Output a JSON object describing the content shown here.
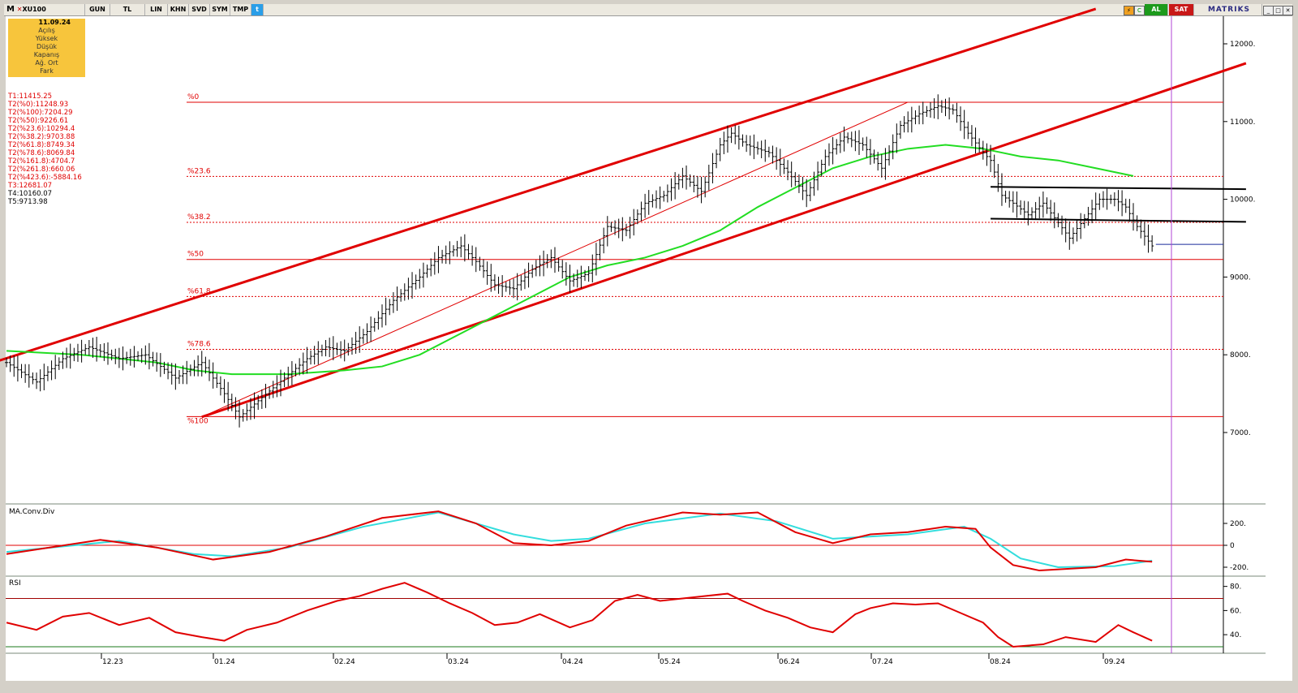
{
  "toolbar": {
    "symbol_prefix": "M",
    "symbol": "XU100",
    "buttons": [
      "GUN",
      "TL",
      "LIN",
      "KHN",
      "SVD",
      "SYM",
      "TMP"
    ],
    "al_label": "AL",
    "sat_label": "SAT",
    "brand": "MATRIKS"
  },
  "infobox": {
    "date": "11.09.24",
    "fields": [
      "Açılış",
      "Yüksek",
      "Düşük",
      "Kapanış",
      "Ağ. Ort",
      "Fark"
    ]
  },
  "fib_list": [
    "T1:11415.25",
    "T2(%0):11248.93",
    "T2(%100):7204.29",
    "T2(%50):9226.61",
    "T2(%23.6):10294.4",
    "T2(%38.2):9703.88",
    "T2(%61.8):8749.34",
    "T2(%78.6):8069.84",
    "T2(%161.8):4704.7",
    "T2(%261.8):660.06",
    "T2(%423.6):-5884.16",
    "T3:12681.07",
    "T4:10160.07",
    "T5:9713.98"
  ],
  "colors": {
    "channel": "#e00000",
    "ma": "#22dd22",
    "macd": "#e00000",
    "signal": "#33dddd",
    "rsi": "#e00000",
    "cursor": "#b044d4"
  },
  "chart_data": [
    {
      "type": "ohlc",
      "panel": "price",
      "y_axis_side": "right",
      "yticks": [
        7000,
        8000,
        9000,
        10000,
        11000,
        12000
      ],
      "ytick_labels": [
        "7000.",
        "8000.",
        "9000.",
        "10000.",
        "11000.",
        "12000."
      ],
      "xtick_labels": [
        "12.23",
        "01.24",
        "02.24",
        "03.24",
        "04.24",
        "05.24",
        "06.24",
        "07.24",
        "08.24",
        "09.24"
      ],
      "fib_levels": [
        {
          "label": "%0",
          "value": 11248.93
        },
        {
          "label": "%23.6",
          "value": 10294.4
        },
        {
          "label": "%38.2",
          "value": 9703.88
        },
        {
          "label": "%50",
          "value": 9226.61
        },
        {
          "label": "%61.8",
          "value": 8749.34
        },
        {
          "label": "%78.6",
          "value": 8069.84
        },
        {
          "label": "%100",
          "value": 7204.29
        }
      ],
      "close_path": [
        [
          0,
          7900
        ],
        [
          8,
          7650
        ],
        [
          15,
          7950
        ],
        [
          22,
          8100
        ],
        [
          30,
          7950
        ],
        [
          37,
          8000
        ],
        [
          45,
          7700
        ],
        [
          52,
          7900
        ],
        [
          58,
          7500
        ],
        [
          62,
          7200
        ],
        [
          68,
          7450
        ],
        [
          74,
          7700
        ],
        [
          80,
          7950
        ],
        [
          85,
          8100
        ],
        [
          90,
          8050
        ],
        [
          96,
          8300
        ],
        [
          103,
          8700
        ],
        [
          110,
          9000
        ],
        [
          115,
          9250
        ],
        [
          121,
          9400
        ],
        [
          125,
          9200
        ],
        [
          130,
          8900
        ],
        [
          135,
          8850
        ],
        [
          140,
          9100
        ],
        [
          145,
          9250
        ],
        [
          150,
          8950
        ],
        [
          155,
          9050
        ],
        [
          160,
          9650
        ],
        [
          165,
          9600
        ],
        [
          170,
          9950
        ],
        [
          175,
          10050
        ],
        [
          180,
          10300
        ],
        [
          185,
          10100
        ],
        [
          190,
          10700
        ],
        [
          193,
          10850
        ],
        [
          197,
          10700
        ],
        [
          203,
          10600
        ],
        [
          208,
          10350
        ],
        [
          213,
          10050
        ],
        [
          218,
          10550
        ],
        [
          223,
          10800
        ],
        [
          228,
          10700
        ],
        [
          233,
          10400
        ],
        [
          238,
          10950
        ],
        [
          243,
          11100
        ],
        [
          248,
          11200
        ],
        [
          252,
          11150
        ],
        [
          256,
          10850
        ],
        [
          260,
          10600
        ],
        [
          262,
          10500
        ],
        [
          265,
          10050
        ],
        [
          268,
          9950
        ],
        [
          272,
          9800
        ],
        [
          276,
          9950
        ],
        [
          280,
          9700
        ],
        [
          283,
          9500
        ],
        [
          287,
          9750
        ],
        [
          291,
          10000
        ],
        [
          295,
          10000
        ],
        [
          298,
          9900
        ],
        [
          301,
          9650
        ],
        [
          305,
          9400
        ]
      ],
      "ma": [
        [
          0,
          8050
        ],
        [
          20,
          8000
        ],
        [
          40,
          7900
        ],
        [
          50,
          7800
        ],
        [
          60,
          7750
        ],
        [
          75,
          7750
        ],
        [
          90,
          7800
        ],
        [
          100,
          7850
        ],
        [
          110,
          8000
        ],
        [
          120,
          8250
        ],
        [
          130,
          8500
        ],
        [
          140,
          8750
        ],
        [
          150,
          9000
        ],
        [
          160,
          9150
        ],
        [
          170,
          9250
        ],
        [
          180,
          9400
        ],
        [
          190,
          9600
        ],
        [
          200,
          9900
        ],
        [
          210,
          10150
        ],
        [
          220,
          10400
        ],
        [
          230,
          10550
        ],
        [
          240,
          10650
        ],
        [
          250,
          10700
        ],
        [
          260,
          10650
        ],
        [
          270,
          10550
        ],
        [
          280,
          10500
        ],
        [
          290,
          10400
        ],
        [
          300,
          10300
        ]
      ],
      "channel_upper": [
        [
          -10,
          7800
        ],
        [
          290,
          12450
        ]
      ],
      "channel_lower": [
        [
          52,
          7200
        ],
        [
          330,
          11750
        ]
      ],
      "channel_thin": [
        [
          52,
          7200
        ],
        [
          240,
          11250
        ]
      ],
      "range_upper": [
        [
          262,
          10160
        ],
        [
          330,
          10130
        ]
      ],
      "range_lower": [
        [
          262,
          9750
        ],
        [
          330,
          9710
        ]
      ],
      "last_price_line": 9420
    },
    {
      "type": "line",
      "panel": "macd",
      "title": "MA.Conv.Div",
      "yticks": [
        200,
        0,
        -200
      ],
      "ytick_labels": [
        "200.",
        "0",
        "-200."
      ],
      "series": [
        {
          "name": "MACD",
          "values": [
            [
              0,
              -80
            ],
            [
              25,
              50
            ],
            [
              40,
              -20
            ],
            [
              55,
              -130
            ],
            [
              70,
              -60
            ],
            [
              85,
              80
            ],
            [
              100,
              250
            ],
            [
              115,
              310
            ],
            [
              125,
              200
            ],
            [
              135,
              20
            ],
            [
              145,
              0
            ],
            [
              155,
              40
            ],
            [
              165,
              180
            ],
            [
              180,
              300
            ],
            [
              190,
              280
            ],
            [
              200,
              300
            ],
            [
              210,
              120
            ],
            [
              220,
              20
            ],
            [
              230,
              100
            ],
            [
              240,
              120
            ],
            [
              250,
              170
            ],
            [
              258,
              150
            ],
            [
              262,
              -20
            ],
            [
              268,
              -180
            ],
            [
              275,
              -230
            ],
            [
              290,
              -200
            ],
            [
              298,
              -130
            ],
            [
              305,
              -150
            ]
          ]
        },
        {
          "name": "Signal",
          "values": [
            [
              0,
              -60
            ],
            [
              30,
              40
            ],
            [
              50,
              -80
            ],
            [
              60,
              -100
            ],
            [
              75,
              -20
            ],
            [
              95,
              170
            ],
            [
              115,
              300
            ],
            [
              135,
              100
            ],
            [
              145,
              40
            ],
            [
              155,
              60
            ],
            [
              170,
              200
            ],
            [
              190,
              290
            ],
            [
              205,
              220
            ],
            [
              220,
              60
            ],
            [
              240,
              100
            ],
            [
              255,
              170
            ],
            [
              262,
              60
            ],
            [
              270,
              -120
            ],
            [
              280,
              -200
            ],
            [
              295,
              -190
            ],
            [
              305,
              -140
            ]
          ]
        }
      ]
    },
    {
      "type": "line",
      "panel": "rsi",
      "title": "RSI",
      "yticks": [
        80,
        60,
        40
      ],
      "ytick_labels": [
        "80.",
        "60.",
        "40."
      ],
      "ref_lines": [
        70,
        30
      ],
      "series": [
        {
          "name": "RSI",
          "values": [
            [
              0,
              50
            ],
            [
              8,
              44
            ],
            [
              15,
              55
            ],
            [
              22,
              58
            ],
            [
              30,
              48
            ],
            [
              38,
              54
            ],
            [
              45,
              42
            ],
            [
              52,
              38
            ],
            [
              58,
              35
            ],
            [
              64,
              44
            ],
            [
              72,
              50
            ],
            [
              80,
              60
            ],
            [
              88,
              68
            ],
            [
              94,
              72
            ],
            [
              100,
              78
            ],
            [
              106,
              83
            ],
            [
              112,
              75
            ],
            [
              118,
              66
            ],
            [
              124,
              58
            ],
            [
              130,
              48
            ],
            [
              136,
              50
            ],
            [
              142,
              57
            ],
            [
              150,
              46
            ],
            [
              156,
              52
            ],
            [
              162,
              68
            ],
            [
              168,
              73
            ],
            [
              174,
              68
            ],
            [
              180,
              70
            ],
            [
              186,
              72
            ],
            [
              192,
              74
            ],
            [
              196,
              68
            ],
            [
              202,
              60
            ],
            [
              208,
              54
            ],
            [
              214,
              46
            ],
            [
              220,
              42
            ],
            [
              226,
              57
            ],
            [
              230,
              62
            ],
            [
              236,
              66
            ],
            [
              242,
              65
            ],
            [
              248,
              66
            ],
            [
              254,
              58
            ],
            [
              260,
              50
            ],
            [
              264,
              38
            ],
            [
              268,
              30
            ],
            [
              276,
              32
            ],
            [
              282,
              38
            ],
            [
              290,
              34
            ],
            [
              296,
              48
            ],
            [
              300,
              42
            ],
            [
              305,
              35
            ]
          ]
        }
      ]
    }
  ]
}
